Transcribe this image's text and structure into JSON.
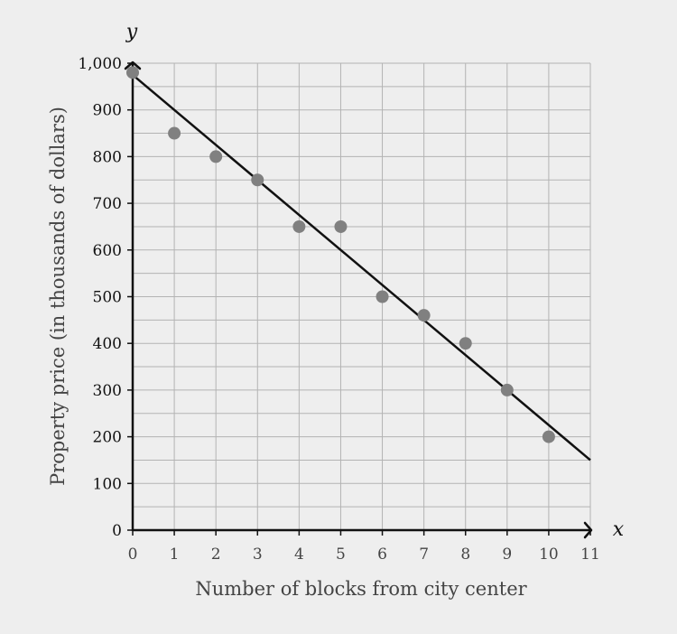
{
  "chart_data": {
    "type": "scatter",
    "xlabel": "Number of blocks from city center",
    "ylabel": "Property price (in thousands of dollars)",
    "x_var": "x",
    "y_var": "y",
    "xlim": [
      0,
      11
    ],
    "ylim": [
      0,
      1000
    ],
    "x_ticks": [
      "0",
      "1",
      "2",
      "3",
      "4",
      "5",
      "6",
      "7",
      "8",
      "9",
      "10",
      "11"
    ],
    "y_ticks": [
      "0",
      "100",
      "200",
      "300",
      "400",
      "500",
      "600",
      "700",
      "800",
      "900",
      "1,000"
    ],
    "x_tick_values": [
      0,
      1,
      2,
      3,
      4,
      5,
      6,
      7,
      8,
      9,
      10,
      11
    ],
    "y_tick_values": [
      0,
      100,
      200,
      300,
      400,
      500,
      600,
      700,
      800,
      900,
      1000
    ],
    "grid": true,
    "x_minor_step": 1,
    "y_minor_step": 50,
    "points": [
      {
        "x": 0,
        "y": 980
      },
      {
        "x": 1,
        "y": 850
      },
      {
        "x": 2,
        "y": 800
      },
      {
        "x": 3,
        "y": 750
      },
      {
        "x": 4,
        "y": 650
      },
      {
        "x": 5,
        "y": 650
      },
      {
        "x": 6,
        "y": 500
      },
      {
        "x": 7,
        "y": 460
      },
      {
        "x": 8,
        "y": 400
      },
      {
        "x": 9,
        "y": 300
      },
      {
        "x": 10,
        "y": 200
      }
    ],
    "trend_line": {
      "x": [
        0,
        11
      ],
      "y": [
        975,
        150
      ]
    },
    "colors": {
      "background": "#eeeeee",
      "grid": "#b3b3b3",
      "axis": "#111111",
      "point": "#808080",
      "line": "#111111"
    }
  }
}
